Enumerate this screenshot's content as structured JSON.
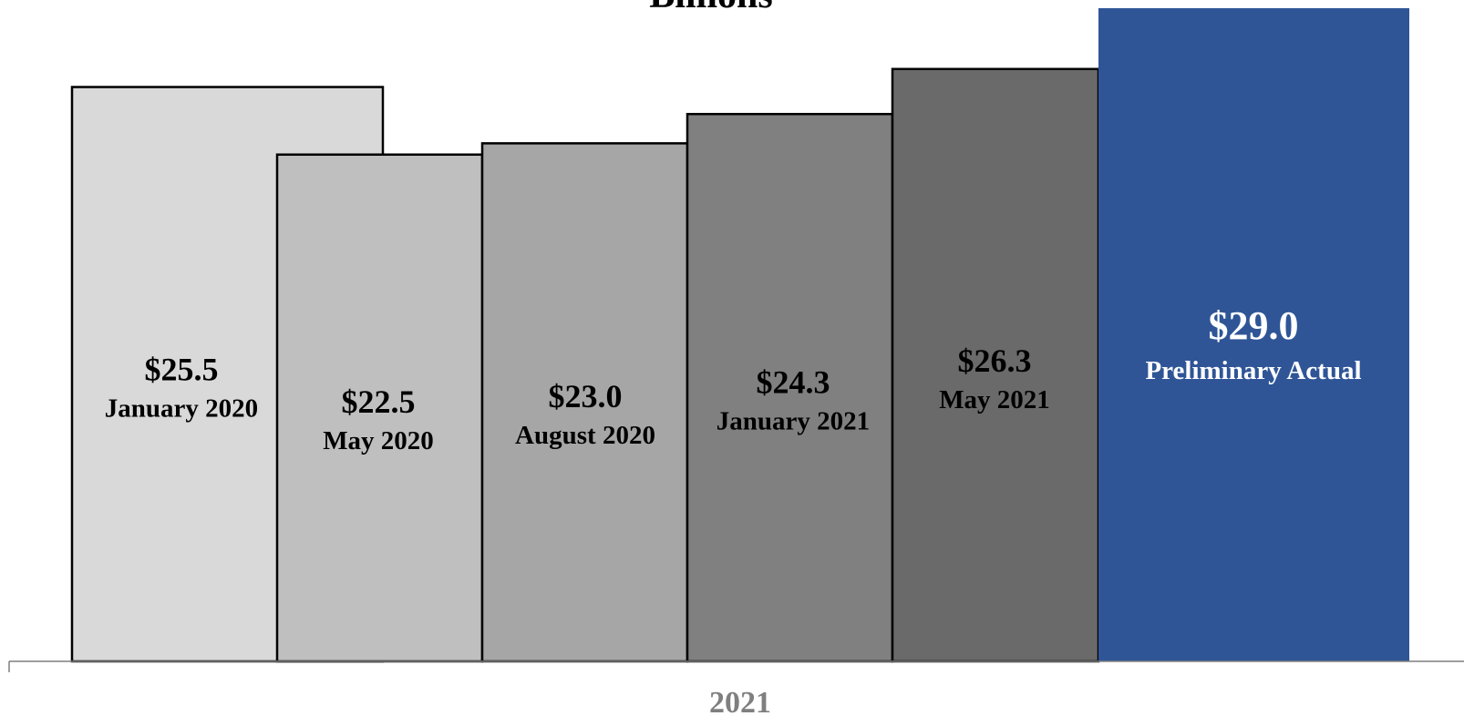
{
  "chart_data": {
    "type": "bar",
    "title": "Billions",
    "subtitle": "",
    "xlabel": "",
    "ylabel": "",
    "x_tick_labels": [
      "2021"
    ],
    "ylim": [
      0,
      29.0
    ],
    "grid": false,
    "legend": "none",
    "categories": [
      "January 2020",
      "May 2020",
      "August 2020",
      "January 2021",
      "May 2021",
      "Preliminary Actual"
    ],
    "values": [
      25.5,
      22.5,
      23.0,
      24.3,
      26.3,
      29.0
    ],
    "value_labels": [
      "$25.5",
      "$22.5",
      "$23.0",
      "$24.3",
      "$26.3",
      "$29.0"
    ],
    "bar_colors": [
      "#d9d9d9",
      "#bfbfbf",
      "#a6a6a6",
      "#808080",
      "#6a6a6a",
      "#2f5597"
    ],
    "text_colors": [
      "#000000",
      "#000000",
      "#000000",
      "#000000",
      "#000000",
      "#ffffff"
    ],
    "bars_overlap": true
  }
}
